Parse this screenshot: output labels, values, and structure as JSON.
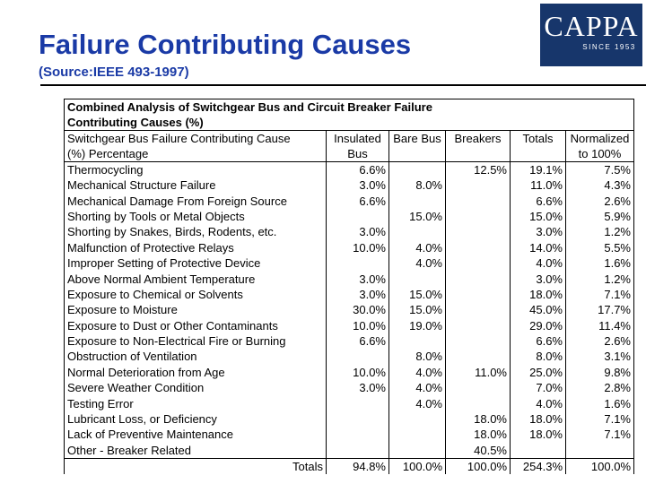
{
  "title": "Failure Contributing Causes",
  "subtitle": "(Source:IEEE 493-1997)",
  "logo": {
    "name": "CAPPA",
    "since": "SINCE 1953"
  },
  "table": {
    "caption_line1": "Combined Analysis of Switchgear Bus and Circuit Breaker Failure",
    "caption_line2": "Contributing Causes (%)",
    "header_row1": [
      "Switchgear Bus Failure Contributing Cause",
      "Insulated",
      "Bare Bus",
      "Breakers",
      "Totals",
      "Normalized"
    ],
    "header_row2": [
      "(%) Percentage",
      "Bus",
      "",
      "",
      "",
      "to 100%"
    ],
    "rows": [
      [
        "Thermocycling",
        "6.6%",
        "",
        "12.5%",
        "19.1%",
        "7.5%"
      ],
      [
        "Mechanical Structure Failure",
        "3.0%",
        "8.0%",
        "",
        "11.0%",
        "4.3%"
      ],
      [
        "Mechanical Damage From Foreign Source",
        "6.6%",
        "",
        "",
        "6.6%",
        "2.6%"
      ],
      [
        "Shorting by Tools or Metal Objects",
        "",
        "15.0%",
        "",
        "15.0%",
        "5.9%"
      ],
      [
        "Shorting by Snakes, Birds, Rodents, etc.",
        "3.0%",
        "",
        "",
        "3.0%",
        "1.2%"
      ],
      [
        "Malfunction of Protective Relays",
        "10.0%",
        "4.0%",
        "",
        "14.0%",
        "5.5%"
      ],
      [
        "Improper Setting of Protective Device",
        "",
        "4.0%",
        "",
        "4.0%",
        "1.6%"
      ],
      [
        "Above Normal Ambient Temperature",
        "3.0%",
        "",
        "",
        "3.0%",
        "1.2%"
      ],
      [
        "Exposure to Chemical or Solvents",
        "3.0%",
        "15.0%",
        "",
        "18.0%",
        "7.1%"
      ],
      [
        "Exposure to Moisture",
        "30.0%",
        "15.0%",
        "",
        "45.0%",
        "17.7%"
      ],
      [
        "Exposure to Dust or Other Contaminants",
        "10.0%",
        "19.0%",
        "",
        "29.0%",
        "11.4%"
      ],
      [
        "Exposure to Non-Electrical Fire or Burning",
        "6.6%",
        "",
        "",
        "6.6%",
        "2.6%"
      ],
      [
        "Obstruction of Ventilation",
        "",
        "8.0%",
        "",
        "8.0%",
        "3.1%"
      ],
      [
        "Normal Deterioration from Age",
        "10.0%",
        "4.0%",
        "11.0%",
        "25.0%",
        "9.8%"
      ],
      [
        "Severe Weather Condition",
        "3.0%",
        "4.0%",
        "",
        "7.0%",
        "2.8%"
      ],
      [
        "Testing Error",
        "",
        "4.0%",
        "",
        "4.0%",
        "1.6%"
      ],
      [
        "Lubricant Loss, or Deficiency",
        "",
        "",
        "18.0%",
        "18.0%",
        "7.1%"
      ],
      [
        "Lack of Preventive Maintenance",
        "",
        "",
        "18.0%",
        "18.0%",
        "7.1%"
      ],
      [
        "Other - Breaker Related",
        "",
        "",
        "40.5%",
        "",
        ""
      ]
    ],
    "totals": [
      "Totals",
      "94.8%",
      "100.0%",
      "100.0%",
      "254.3%",
      "100.0%"
    ]
  }
}
